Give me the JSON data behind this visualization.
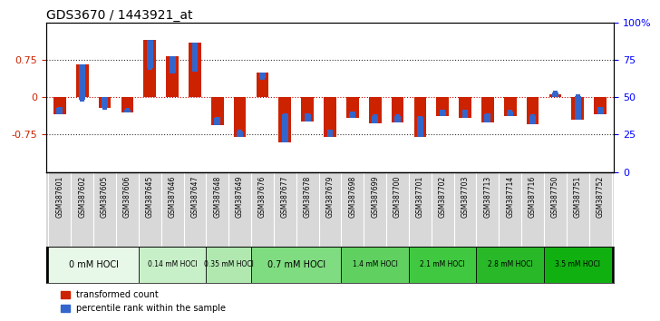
{
  "title": "GDS3670 / 1443921_at",
  "samples": [
    "GSM387601",
    "GSM387602",
    "GSM387605",
    "GSM387606",
    "GSM387645",
    "GSM387646",
    "GSM387647",
    "GSM387648",
    "GSM387649",
    "GSM387676",
    "GSM387677",
    "GSM387678",
    "GSM387679",
    "GSM387698",
    "GSM387699",
    "GSM387700",
    "GSM387701",
    "GSM387702",
    "GSM387703",
    "GSM387713",
    "GSM387714",
    "GSM387716",
    "GSM387750",
    "GSM387751",
    "GSM387752"
  ],
  "red_values": [
    -0.35,
    0.65,
    -0.22,
    -0.3,
    1.15,
    0.82,
    1.1,
    -0.57,
    -0.8,
    0.5,
    -0.9,
    -0.48,
    -0.8,
    -0.42,
    -0.52,
    -0.5,
    -0.8,
    -0.38,
    -0.42,
    -0.5,
    -0.38,
    -0.55,
    0.05,
    -0.45,
    -0.35
  ],
  "blue_values": [
    -0.22,
    -0.05,
    -0.22,
    -0.25,
    0.58,
    0.5,
    0.55,
    -0.42,
    -0.68,
    0.38,
    -0.35,
    -0.35,
    -0.68,
    -0.32,
    -0.38,
    -0.38,
    -0.4,
    -0.28,
    -0.28,
    -0.35,
    -0.28,
    -0.38,
    0.1,
    0.02,
    -0.22
  ],
  "dose_groups": [
    {
      "label": "0 mM HOCl",
      "start": 0,
      "end": 4,
      "color": "#e8f8e8"
    },
    {
      "label": "0.14 mM HOCl",
      "start": 4,
      "end": 7,
      "color": "#c8f0c8"
    },
    {
      "label": "0.35 mM HOCl",
      "start": 7,
      "end": 9,
      "color": "#b0e8b0"
    },
    {
      "label": "0.7 mM HOCl",
      "start": 9,
      "end": 13,
      "color": "#80dc80"
    },
    {
      "label": "1.4 mM HOCl",
      "start": 13,
      "end": 16,
      "color": "#60d060"
    },
    {
      "label": "2.1 mM HOCl",
      "start": 16,
      "end": 19,
      "color": "#40c840"
    },
    {
      "label": "2.8 mM HOCl",
      "start": 19,
      "end": 22,
      "color": "#28b828"
    },
    {
      "label": "3.5 mM HOCl",
      "start": 22,
      "end": 25,
      "color": "#10b010"
    }
  ],
  "ylim": [
    -1.5,
    1.5
  ],
  "yticks": [
    -0.75,
    0,
    0.75
  ],
  "ytick_labels": [
    "-0.75",
    "0",
    "0.75"
  ],
  "right_yticks": [
    0,
    0.25,
    0.5,
    0.75,
    1.0
  ],
  "right_ytick_labels": [
    "0",
    "25",
    "50",
    "75",
    "100%"
  ],
  "red_color": "#cc2200",
  "blue_color": "#3366cc",
  "bg_color": "#ffffff",
  "plot_bg": "#ffffff",
  "bar_width": 0.55,
  "legend_red": "transformed count",
  "legend_blue": "percentile rank within the sample"
}
